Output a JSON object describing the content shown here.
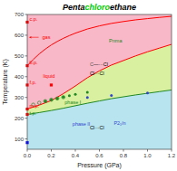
{
  "chart_data": {
    "type": "line",
    "title": [
      {
        "text": "Penta",
        "color": "black"
      },
      {
        "text": "chloro",
        "color": "#00cc00"
      },
      {
        "text": "ethane",
        "color": "black"
      }
    ],
    "xlabel": "Pressure (GPa)",
    "ylabel": "Temperature (K)",
    "xlim": [
      0.0,
      1.2
    ],
    "ylim": [
      50,
      700
    ],
    "xticks": [
      {
        "value": 0.0,
        "label": "0.0"
      },
      0.2,
      0.4,
      0.6,
      0.8,
      {
        "value": 1.0,
        "label": "1.0"
      },
      1.2
    ],
    "yticks": [
      100,
      200,
      300,
      400,
      500,
      600,
      700
    ],
    "color": "#b8e4f0",
    "series": [
      {
        "type": "area",
        "color": "#d8f0a0",
        "x": [
          0.0,
          0.1,
          0.2,
          0.3,
          0.4,
          0.5,
          0.6,
          0.7,
          0.8,
          0.9,
          1.0,
          1.1,
          1.2
        ],
        "values": [
          218,
          227,
          237,
          248,
          260,
          272,
          283,
          294,
          303,
          312,
          320,
          328,
          336
        ]
      },
      {
        "type": "area",
        "color": "#f9b8c8",
        "x": [
          0.0,
          0.1,
          0.2,
          0.3,
          0.4,
          0.5,
          0.6,
          0.7,
          0.8,
          0.9,
          1.0,
          1.1,
          1.2
        ],
        "values": [
          244,
          263,
          285,
          318,
          355,
          395,
          428,
          456,
          478,
          500,
          520,
          538,
          556
        ]
      },
      {
        "type": "line",
        "color": "red",
        "x": [
          0.0,
          0.1,
          0.2,
          0.3,
          0.4,
          0.5,
          0.6,
          0.7,
          0.8,
          0.9,
          1.0,
          1.1,
          1.2
        ],
        "values": [
          244,
          263,
          285,
          318,
          355,
          395,
          428,
          456,
          478,
          500,
          520,
          538,
          556
        ]
      },
      {
        "type": "line",
        "color": "red",
        "x": [
          0.0,
          0.05,
          0.1,
          0.15,
          0.2,
          0.25,
          0.3,
          0.35,
          0.4,
          0.5,
          0.6,
          0.7,
          0.8,
          0.9,
          1.0,
          1.1,
          1.2
        ],
        "values": [
          453,
          483,
          510,
          533,
          553,
          570,
          585,
          598,
          610,
          630,
          645,
          657,
          666,
          674,
          680,
          686,
          691
        ]
      },
      {
        "type": "line",
        "color": "#228822",
        "x": [
          0.0,
          0.1,
          0.2,
          0.3,
          0.4,
          0.5,
          0.6,
          0.7,
          0.8,
          0.9,
          1.0,
          1.1,
          1.2
        ],
        "values": [
          218,
          227,
          237,
          248,
          260,
          272,
          283,
          294,
          303,
          312,
          320,
          328,
          336
        ]
      },
      {
        "type": "scatter",
        "marker": "square",
        "color": "red",
        "x": [
          0.0,
          0.0,
          0.0,
          0.0,
          0.0
        ],
        "values": [
          663,
          453,
          360,
          244,
          218
        ]
      },
      {
        "type": "scatter",
        "marker": "square",
        "color": "blue",
        "x": [
          0.0
        ],
        "values": [
          82
        ]
      },
      {
        "type": "scatter",
        "marker": "square",
        "color": "red",
        "x": [
          0.2
        ],
        "values": [
          360
        ]
      },
      {
        "type": "scatter",
        "marker": "open-circle",
        "color": "#228822",
        "x": [
          0.05,
          0.1,
          0.15,
          0.2,
          0.25,
          0.3
        ],
        "values": [
          265,
          274,
          282,
          289,
          295,
          301
        ]
      },
      {
        "type": "scatter",
        "marker": "circle",
        "color": "#228822",
        "x": [
          0.15,
          0.2,
          0.25,
          0.3,
          0.35,
          0.4,
          0.5
        ],
        "values": [
          282,
          289,
          295,
          302,
          308,
          315,
          325
        ]
      },
      {
        "type": "scatter",
        "marker": "circle",
        "color": "#3344cc",
        "x": [
          0.5,
          0.7,
          1.0
        ],
        "values": [
          300,
          310,
          322
        ]
      }
    ],
    "annotations": [
      {
        "text": "c.p.",
        "x": 0.018,
        "y": 668,
        "color": "red"
      },
      {
        "text": "b.p.",
        "x": 0.018,
        "y": 458,
        "color": "red"
      },
      {
        "text": "f.p.",
        "x": 0.018,
        "y": 365,
        "color": "red"
      },
      {
        "text": "m.p.",
        "x": 0.018,
        "y": 249,
        "color": "red"
      },
      {
        "text": "t.p.",
        "x": 0.018,
        "y": 215,
        "color": "#228822"
      },
      {
        "text": "gas",
        "x": 0.125,
        "y": 590,
        "color": "red",
        "arrow": [
          0.095,
          0.015
        ]
      },
      {
        "text": "liquid",
        "x": 0.18,
        "y": 395,
        "color": "red",
        "align": "center"
      },
      {
        "text": "Pnma",
        "x": 0.68,
        "y": 565,
        "color": "#228822"
      },
      {
        "text": "P2₁/n",
        "x": 0.72,
        "y": 168,
        "color": "#3344cc"
      },
      {
        "text": "phase I",
        "x": 0.38,
        "y": 270,
        "color": "#228822",
        "align": "center"
      },
      {
        "text": "phase II",
        "x": 0.45,
        "y": 162,
        "color": "#3344cc",
        "align": "center"
      },
      {
        "parts": [
          {
            "text": "C",
            "color": "#555555"
          },
          {
            "text": "—···Cl",
            "color": "black"
          }
        ],
        "x": 0.52,
        "y": 450
      },
      {
        "text": "Cl···Cl",
        "x": 0.52,
        "y": 408,
        "color": "black"
      },
      {
        "text": "Cl···Cl",
        "x": 0.52,
        "y": 145,
        "color": "black"
      }
    ]
  }
}
